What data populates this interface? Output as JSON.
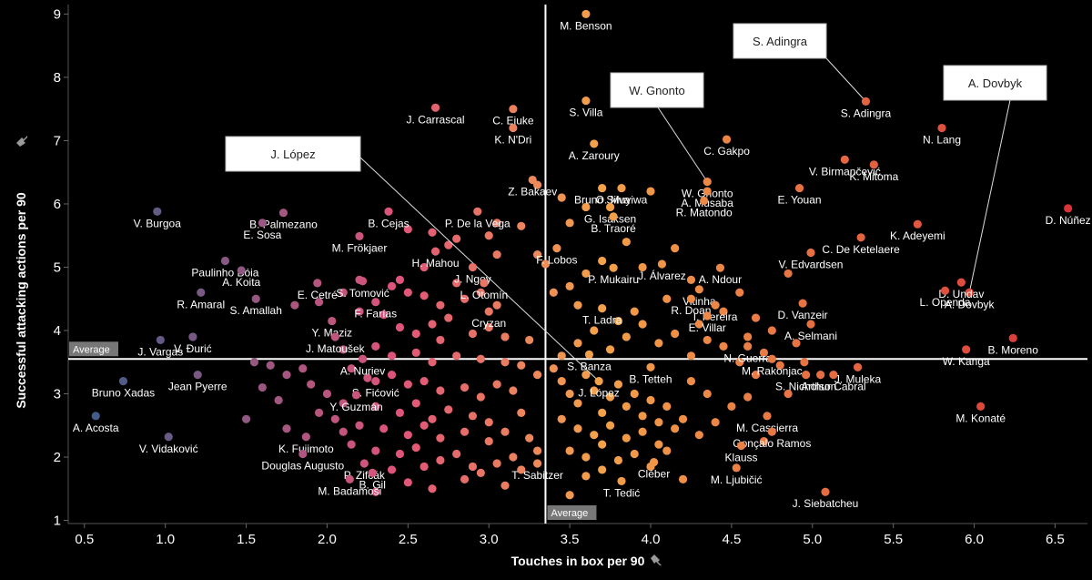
{
  "chart_data": {
    "type": "scatter",
    "xlabel": "Touches in box per 90",
    "ylabel": "Successful attacking actions per 90",
    "xlim": [
      0.4,
      6.7
    ],
    "ylim": [
      0.95,
      9.15
    ],
    "x_ticks": [
      "0.5",
      "1.0",
      "1.5",
      "2.0",
      "2.5",
      "3.0",
      "3.5",
      "4.0",
      "4.5",
      "5.0",
      "5.5",
      "6.0",
      "6.5"
    ],
    "y_ticks": [
      "1",
      "2",
      "3",
      "4",
      "5",
      "6",
      "7",
      "8",
      "9"
    ],
    "average": {
      "x": 3.35,
      "y": 3.55,
      "label_x": "Average",
      "label_y": "Average"
    },
    "axis_pin_icon": "pin-icon",
    "color_scale": {
      "low": "#3e5c8a",
      "mid_low": "#e0547a",
      "mid": "#f3a24a",
      "high": "#d8333a"
    },
    "labeled_points": [
      {
        "name": "M. Benson",
        "x": 3.6,
        "y": 9.0
      },
      {
        "name": "S. Adingra",
        "x": 5.33,
        "y": 7.62
      },
      {
        "name": "A. Dovbyk",
        "x": 5.97,
        "y": 4.6
      },
      {
        "name": "W. Gnonto",
        "x": 4.35,
        "y": 6.35
      },
      {
        "name": "J. López",
        "x": 3.68,
        "y": 3.2
      },
      {
        "name": "C. Ejuke",
        "x": 3.15,
        "y": 7.5
      },
      {
        "name": "S. Villa",
        "x": 3.6,
        "y": 7.63
      },
      {
        "name": "J. Carrascal",
        "x": 2.67,
        "y": 7.52
      },
      {
        "name": "K. N'Dri",
        "x": 3.15,
        "y": 7.2
      },
      {
        "name": "C. Gakpo",
        "x": 4.47,
        "y": 7.02
      },
      {
        "name": "N. Lang",
        "x": 5.8,
        "y": 7.2
      },
      {
        "name": "A. Zaroury",
        "x": 3.65,
        "y": 6.95
      },
      {
        "name": "V. Birmančević",
        "x": 5.2,
        "y": 6.7
      },
      {
        "name": "K. Mitoma",
        "x": 5.38,
        "y": 6.62
      },
      {
        "name": "Z. Bakaev",
        "x": 3.27,
        "y": 6.38
      },
      {
        "name": "O. Muyiwa",
        "x": 3.82,
        "y": 6.25
      },
      {
        "name": "A. Musaba",
        "x": 4.35,
        "y": 6.2
      },
      {
        "name": "E. Youan",
        "x": 4.92,
        "y": 6.25
      },
      {
        "name": "D. Núñez",
        "x": 6.58,
        "y": 5.93
      },
      {
        "name": "V. Burgoa",
        "x": 0.95,
        "y": 5.88
      },
      {
        "name": "B. Palmezano",
        "x": 1.73,
        "y": 5.86
      },
      {
        "name": "Bruno Silva",
        "x": 3.7,
        "y": 6.25
      },
      {
        "name": "G. Isaksen",
        "x": 3.75,
        "y": 5.95
      },
      {
        "name": "B. Traoré",
        "x": 3.77,
        "y": 5.8
      },
      {
        "name": "R. Matondo",
        "x": 4.33,
        "y": 6.05
      },
      {
        "name": "B. Cejas",
        "x": 2.38,
        "y": 5.88
      },
      {
        "name": "P. De la Vega",
        "x": 2.93,
        "y": 5.88
      },
      {
        "name": "C. De Ketelaere",
        "x": 5.3,
        "y": 5.47
      },
      {
        "name": "K. Adeyemi",
        "x": 5.65,
        "y": 5.68
      },
      {
        "name": "E. Sosa",
        "x": 1.6,
        "y": 5.7
      },
      {
        "name": "M. Frökjaer",
        "x": 2.2,
        "y": 5.49
      },
      {
        "name": "V. Edvardsen",
        "x": 4.99,
        "y": 5.23
      },
      {
        "name": "F. Lobos",
        "x": 3.42,
        "y": 5.3
      },
      {
        "name": "Paulinho Bóia",
        "x": 1.37,
        "y": 5.1
      },
      {
        "name": "H. Mahou",
        "x": 2.67,
        "y": 5.25
      },
      {
        "name": "J. Álvarez",
        "x": 4.07,
        "y": 5.05
      },
      {
        "name": "D. Undav",
        "x": 5.92,
        "y": 4.76
      },
      {
        "name": "J. Ngoy",
        "x": 2.9,
        "y": 5.0
      },
      {
        "name": "P. Mukairu",
        "x": 3.77,
        "y": 4.99
      },
      {
        "name": "A. Ndour",
        "x": 4.43,
        "y": 4.99
      },
      {
        "name": "A. Koita",
        "x": 1.47,
        "y": 4.95
      },
      {
        "name": "S. Tomović",
        "x": 2.22,
        "y": 4.78
      },
      {
        "name": "E. Cetré",
        "x": 1.94,
        "y": 4.75
      },
      {
        "name": "L. Otomín",
        "x": 2.97,
        "y": 4.75
      },
      {
        "name": "Vitinha",
        "x": 4.3,
        "y": 4.65
      },
      {
        "name": "L. Openda",
        "x": 5.82,
        "y": 4.63
      },
      {
        "name": "D. Vanzeir",
        "x": 4.94,
        "y": 4.43
      },
      {
        "name": "S. Amallah",
        "x": 1.56,
        "y": 4.5
      },
      {
        "name": "R. Doan",
        "x": 4.25,
        "y": 4.5
      },
      {
        "name": "T. Ladra",
        "x": 3.7,
        "y": 4.35
      },
      {
        "name": "F. Farías",
        "x": 2.3,
        "y": 4.45
      },
      {
        "name": "R. Amaral",
        "x": 1.22,
        "y": 4.6
      },
      {
        "name": "I. Pereira",
        "x": 4.4,
        "y": 4.4
      },
      {
        "name": "Y. Maziz",
        "x": 2.03,
        "y": 4.15
      },
      {
        "name": "E. Villar",
        "x": 4.35,
        "y": 4.23
      },
      {
        "name": "Cryzan",
        "x": 3.0,
        "y": 4.3
      },
      {
        "name": "A. Selmani",
        "x": 4.99,
        "y": 4.1
      },
      {
        "name": "V. Đurić",
        "x": 1.17,
        "y": 3.9
      },
      {
        "name": "J. Matoušek",
        "x": 2.05,
        "y": 3.9
      },
      {
        "name": "N. Guerra",
        "x": 4.6,
        "y": 3.75
      },
      {
        "name": "J. Vargas",
        "x": 0.97,
        "y": 3.85
      },
      {
        "name": "A. Nuriev",
        "x": 2.22,
        "y": 3.55
      },
      {
        "name": "S. Banza",
        "x": 3.62,
        "y": 3.62
      },
      {
        "name": "M. Rakonjac",
        "x": 4.75,
        "y": 3.55
      },
      {
        "name": "B. Moreno",
        "x": 6.24,
        "y": 3.88
      },
      {
        "name": "W. Kanga",
        "x": 5.95,
        "y": 3.7
      },
      {
        "name": "Bruno Xadas",
        "x": 0.74,
        "y": 3.2
      },
      {
        "name": "Jean Pyerre",
        "x": 1.2,
        "y": 3.3
      },
      {
        "name": "B. Tetteh",
        "x": 4.0,
        "y": 3.42
      },
      {
        "name": "J. Muleka",
        "x": 5.28,
        "y": 3.42
      },
      {
        "name": "S. Fićović",
        "x": 2.3,
        "y": 3.2
      },
      {
        "name": "Arthur Cabral",
        "x": 5.13,
        "y": 3.3
      },
      {
        "name": "Y. Guzmán",
        "x": 2.18,
        "y": 2.98
      },
      {
        "name": "S. Nicholson",
        "x": 4.96,
        "y": 3.3
      },
      {
        "name": "A. Acosta",
        "x": 0.57,
        "y": 2.65
      },
      {
        "name": "M. Cassierra",
        "x": 4.72,
        "y": 2.65
      },
      {
        "name": "M. Konaté",
        "x": 6.04,
        "y": 2.8
      },
      {
        "name": "K. Fujimoto",
        "x": 1.87,
        "y": 2.32
      },
      {
        "name": "Gonçalo Ramos",
        "x": 4.75,
        "y": 2.4
      },
      {
        "name": "V. Vidaković",
        "x": 1.02,
        "y": 2.32
      },
      {
        "name": "Douglas Augusto",
        "x": 1.85,
        "y": 2.05
      },
      {
        "name": "Klauss",
        "x": 4.56,
        "y": 2.18
      },
      {
        "name": "P. Zifčák",
        "x": 2.23,
        "y": 1.9
      },
      {
        "name": "Cléber",
        "x": 4.02,
        "y": 1.92
      },
      {
        "name": "M. Badamosi",
        "x": 2.14,
        "y": 1.65
      },
      {
        "name": "M. Ljubičić",
        "x": 4.53,
        "y": 1.83
      },
      {
        "name": "B. Gil",
        "x": 2.28,
        "y": 1.75
      },
      {
        "name": "T. Sabitzer",
        "x": 3.3,
        "y": 1.9
      },
      {
        "name": "T. Tedić",
        "x": 3.82,
        "y": 1.62
      },
      {
        "name": "J. Siebatcheu",
        "x": 5.08,
        "y": 1.45
      }
    ],
    "callouts": [
      {
        "name": "S. Adingra",
        "box_label": "S. Adingra"
      },
      {
        "name": "W. Gnonto",
        "box_label": "W. Gnonto"
      },
      {
        "name": "A. Dovbyk",
        "box_label": "A. Dovbyk"
      },
      {
        "name": "J. López",
        "box_label": "J. López"
      }
    ],
    "unlabeled_points": [
      [
        2.2,
        4.8
      ],
      [
        2.4,
        4.7
      ],
      [
        2.5,
        4.6
      ],
      [
        2.6,
        4.55
      ],
      [
        2.7,
        4.4
      ],
      [
        2.75,
        4.2
      ],
      [
        2.8,
        4.75
      ],
      [
        2.85,
        4.5
      ],
      [
        2.95,
        4.6
      ],
      [
        3.05,
        4.4
      ],
      [
        2.2,
        4.3
      ],
      [
        2.35,
        4.25
      ],
      [
        2.45,
        4.05
      ],
      [
        2.55,
        3.95
      ],
      [
        2.65,
        4.1
      ],
      [
        2.7,
        3.85
      ],
      [
        2.9,
        3.95
      ],
      [
        3.0,
        4.05
      ],
      [
        3.1,
        3.9
      ],
      [
        3.25,
        3.85
      ],
      [
        2.1,
        3.7
      ],
      [
        2.3,
        3.75
      ],
      [
        2.4,
        3.6
      ],
      [
        2.55,
        3.65
      ],
      [
        2.65,
        3.5
      ],
      [
        2.8,
        3.6
      ],
      [
        2.95,
        3.55
      ],
      [
        3.1,
        3.5
      ],
      [
        3.2,
        3.45
      ],
      [
        3.3,
        3.3
      ],
      [
        2.15,
        3.4
      ],
      [
        2.25,
        3.25
      ],
      [
        2.4,
        3.3
      ],
      [
        2.5,
        3.15
      ],
      [
        2.6,
        3.2
      ],
      [
        2.7,
        3.05
      ],
      [
        2.85,
        3.1
      ],
      [
        2.95,
        2.95
      ],
      [
        3.05,
        3.15
      ],
      [
        3.15,
        3.05
      ],
      [
        2.0,
        3.0
      ],
      [
        2.1,
        2.85
      ],
      [
        2.3,
        2.8
      ],
      [
        2.45,
        2.7
      ],
      [
        2.55,
        2.85
      ],
      [
        2.65,
        2.6
      ],
      [
        2.75,
        2.75
      ],
      [
        2.9,
        2.65
      ],
      [
        3.0,
        2.55
      ],
      [
        3.2,
        2.7
      ],
      [
        2.05,
        2.6
      ],
      [
        2.2,
        2.5
      ],
      [
        2.35,
        2.45
      ],
      [
        2.5,
        2.35
      ],
      [
        2.6,
        2.5
      ],
      [
        2.7,
        2.3
      ],
      [
        2.85,
        2.4
      ],
      [
        3.0,
        2.25
      ],
      [
        3.1,
        2.4
      ],
      [
        3.25,
        2.3
      ],
      [
        2.15,
        2.2
      ],
      [
        2.3,
        2.1
      ],
      [
        2.45,
        2.05
      ],
      [
        2.55,
        2.15
      ],
      [
        2.7,
        1.95
      ],
      [
        2.8,
        2.05
      ],
      [
        2.9,
        1.85
      ],
      [
        3.05,
        1.9
      ],
      [
        3.15,
        2.0
      ],
      [
        3.3,
        2.1
      ],
      [
        2.3,
        1.45
      ],
      [
        2.5,
        1.6
      ],
      [
        2.65,
        1.5
      ],
      [
        2.85,
        1.65
      ],
      [
        2.95,
        1.75
      ],
      [
        3.1,
        1.55
      ],
      [
        3.2,
        1.8
      ],
      [
        2.4,
        1.8
      ],
      [
        2.6,
        1.85
      ],
      [
        1.7,
        2.9
      ],
      [
        1.55,
        3.5
      ],
      [
        1.65,
        3.45
      ],
      [
        1.75,
        3.3
      ],
      [
        1.85,
        3.4
      ],
      [
        1.9,
        3.15
      ],
      [
        1.6,
        3.1
      ],
      [
        1.95,
        2.7
      ],
      [
        1.5,
        2.6
      ],
      [
        2.1,
        2.4
      ],
      [
        1.75,
        2.45
      ],
      [
        3.4,
        3.4
      ],
      [
        3.45,
        3.2
      ],
      [
        3.5,
        3.0
      ],
      [
        3.55,
        2.85
      ],
      [
        3.6,
        3.3
      ],
      [
        3.65,
        3.05
      ],
      [
        3.7,
        2.7
      ],
      [
        3.75,
        2.95
      ],
      [
        3.8,
        3.15
      ],
      [
        3.85,
        2.8
      ],
      [
        3.9,
        3.0
      ],
      [
        3.95,
        2.65
      ],
      [
        4.0,
        2.9
      ],
      [
        4.05,
        2.55
      ],
      [
        4.1,
        2.8
      ],
      [
        3.45,
        2.6
      ],
      [
        3.55,
        2.45
      ],
      [
        3.65,
        2.35
      ],
      [
        3.75,
        2.5
      ],
      [
        3.85,
        2.3
      ],
      [
        3.95,
        2.4
      ],
      [
        4.05,
        2.2
      ],
      [
        4.15,
        2.45
      ],
      [
        4.2,
        2.6
      ],
      [
        4.3,
        2.35
      ],
      [
        3.5,
        2.1
      ],
      [
        3.6,
        2.0
      ],
      [
        3.7,
        2.2
      ],
      [
        3.8,
        1.95
      ],
      [
        3.9,
        2.05
      ],
      [
        4.0,
        1.85
      ],
      [
        4.1,
        2.1
      ],
      [
        3.45,
        3.6
      ],
      [
        3.55,
        3.8
      ],
      [
        3.65,
        4.0
      ],
      [
        3.75,
        3.7
      ],
      [
        3.85,
        3.9
      ],
      [
        3.95,
        4.1
      ],
      [
        4.05,
        3.8
      ],
      [
        4.15,
        3.95
      ],
      [
        4.25,
        3.6
      ],
      [
        4.35,
        3.85
      ],
      [
        4.45,
        3.75
      ],
      [
        4.55,
        3.5
      ],
      [
        4.65,
        3.3
      ],
      [
        4.7,
        3.65
      ],
      [
        4.8,
        3.45
      ],
      [
        4.85,
        3.0
      ],
      [
        4.6,
        2.95
      ],
      [
        4.5,
        2.8
      ],
      [
        4.35,
        3.0
      ],
      [
        4.25,
        3.2
      ],
      [
        4.4,
        2.55
      ],
      [
        4.7,
        2.25
      ],
      [
        4.2,
        1.65
      ],
      [
        3.6,
        1.7
      ],
      [
        3.7,
        1.8
      ],
      [
        3.5,
        1.4
      ],
      [
        3.4,
        4.6
      ],
      [
        3.5,
        4.7
      ],
      [
        3.6,
        4.9
      ],
      [
        3.7,
        5.1
      ],
      [
        3.85,
        5.4
      ],
      [
        3.95,
        5.0
      ],
      [
        4.15,
        5.3
      ],
      [
        4.25,
        4.8
      ],
      [
        4.1,
        4.5
      ],
      [
        3.9,
        4.3
      ],
      [
        3.8,
        4.15
      ],
      [
        3.55,
        4.4
      ],
      [
        4.55,
        4.6
      ],
      [
        4.65,
        4.2
      ],
      [
        4.75,
        4.0
      ],
      [
        4.85,
        4.9
      ],
      [
        4.9,
        3.8
      ],
      [
        4.95,
        3.5
      ],
      [
        5.05,
        3.3
      ],
      [
        4.45,
        4.3
      ],
      [
        4.3,
        4.1
      ],
      [
        4.6,
        3.9
      ],
      [
        1.95,
        4.45
      ],
      [
        1.8,
        4.4
      ],
      [
        2.1,
        4.6
      ],
      [
        2.5,
        5.6
      ],
      [
        2.65,
        5.55
      ],
      [
        2.75,
        5.35
      ],
      [
        2.8,
        5.45
      ],
      [
        3.0,
        5.5
      ],
      [
        3.05,
        5.7
      ],
      [
        3.2,
        5.65
      ],
      [
        3.3,
        5.2
      ],
      [
        3.35,
        5.05
      ],
      [
        3.05,
        5.2
      ],
      [
        2.6,
        5.0
      ],
      [
        2.45,
        4.8
      ],
      [
        3.5,
        5.7
      ],
      [
        3.3,
        6.3
      ],
      [
        3.45,
        6.1
      ],
      [
        3.6,
        5.95
      ],
      [
        4.0,
        6.2
      ]
    ]
  }
}
